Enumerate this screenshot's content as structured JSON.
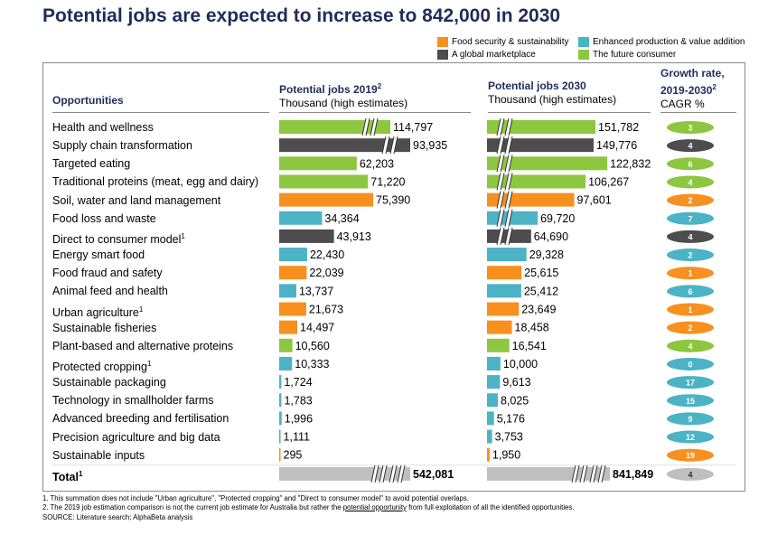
{
  "title": "Potential jobs are expected to increase to 842,000 in 2030",
  "legend": [
    {
      "label": "Food security & sustainability",
      "color": "#f7901e"
    },
    {
      "label": "Enhanced production & value addition",
      "color": "#4bb3c5"
    },
    {
      "label": "A global marketplace",
      "color": "#4d4d4f"
    },
    {
      "label": "The future consumer",
      "color": "#8dc63f"
    }
  ],
  "headers": {
    "opportunities": "Opportunities",
    "jobs2019_title": "Potential jobs 2019",
    "jobs2019_sup": "2",
    "jobs2019_sub": "Thousand (high estimates)",
    "jobs2030_title": "Potential jobs 2030",
    "jobs2030_sub": "Thousand (high estimates)",
    "growth_title_1": "Growth rate,",
    "growth_title_2": "2019-2030",
    "growth_sup": "2",
    "growth_sub": "CAGR %"
  },
  "chart_data": {
    "type": "bar",
    "categories": [
      "Health and wellness",
      "Supply chain transformation",
      "Targeted eating",
      "Traditional proteins (meat, egg and dairy)",
      "Soil, water and land management",
      "Food loss and waste",
      "Direct to consumer model",
      "Energy smart food",
      "Food fraud and safety",
      "Animal feed and health",
      "Urban agriculture",
      "Sustainable fisheries",
      "Plant-based and alternative proteins",
      "Protected cropping",
      "Sustainable packaging",
      "Technology in smallholder farms",
      "Advanced breeding and fertilisation",
      "Precision agriculture and big data",
      "Sustainable inputs"
    ],
    "footnote_marks": [
      "",
      "",
      "",
      "",
      "",
      "",
      "1",
      "",
      "",
      "",
      "1",
      "",
      "",
      "1",
      "",
      "",
      "",
      "",
      ""
    ],
    "group": [
      "consumer",
      "global",
      "consumer",
      "consumer",
      "food",
      "enhanced",
      "global",
      "enhanced",
      "food",
      "enhanced",
      "food",
      "food",
      "consumer",
      "enhanced",
      "enhanced",
      "enhanced",
      "enhanced",
      "enhanced",
      "food"
    ],
    "group_colors": {
      "food": "#f7901e",
      "enhanced": "#4bb3c5",
      "global": "#4d4d4f",
      "consumer": "#8dc63f",
      "total": "#bfbfbf"
    },
    "series": [
      {
        "name": "Potential jobs 2019",
        "values": [
          114797,
          93935,
          62203,
          71220,
          75390,
          34364,
          43913,
          22430,
          22039,
          13737,
          21673,
          14497,
          10560,
          10333,
          1724,
          1783,
          1996,
          1111,
          295
        ],
        "labels": [
          "114,797",
          "93,935",
          "62,203",
          "71,220",
          "75,390",
          "34,364",
          "43,913",
          "22,430",
          "22,039",
          "13,737",
          "21,673",
          "14,497",
          "10,560",
          "10,333",
          "1,724",
          "1,783",
          "1,996",
          "1,111",
          "295"
        ],
        "breaks": [
          true,
          true,
          false,
          false,
          false,
          false,
          false,
          false,
          false,
          false,
          false,
          false,
          false,
          false,
          false,
          false,
          false,
          false,
          false
        ]
      },
      {
        "name": "Potential jobs 2030",
        "values": [
          151782,
          149776,
          122832,
          106267,
          97601,
          69720,
          64690,
          29328,
          25615,
          25412,
          23649,
          18458,
          16541,
          10000,
          9613,
          8025,
          5176,
          3753,
          1950
        ],
        "labels": [
          "151,782",
          "149,776",
          "122,832",
          "106,267",
          "97,601",
          "69,720",
          "64,690",
          "29,328",
          "25,615",
          "25,412",
          "23,649",
          "18,458",
          "16,541",
          "10,000",
          "9,613",
          "8,025",
          "5,176",
          "3,753",
          "1,950"
        ],
        "breaks": [
          true,
          true,
          true,
          true,
          true,
          true,
          true,
          false,
          false,
          false,
          false,
          false,
          false,
          false,
          false,
          false,
          false,
          false,
          false
        ]
      }
    ],
    "cagr": [
      3,
      4,
      6,
      4,
      2,
      7,
      4,
      2,
      1,
      6,
      1,
      2,
      4,
      0,
      17,
      15,
      9,
      12,
      19
    ],
    "total": {
      "label": "Total",
      "sup": "1",
      "value_2019": 542081,
      "label_2019": "542,081",
      "value_2030": 841849,
      "label_2030": "841,849",
      "cagr": 4
    }
  },
  "footnotes": {
    "note1": "1. This summation does not include \"Urban agriculture\", \"Protected cropping\" and \"Direct to consumer model\" to avoid potential overlaps.",
    "note2_pre": "2. The 2019 job estimation comparison is not the current job estimate for Australia but rather the ",
    "note2_link": "potential opportunity",
    "note2_post": " from full exploitation of all the identified opportunities.",
    "source": "SOURCE: Literature search; AlphaBeta analysis"
  }
}
